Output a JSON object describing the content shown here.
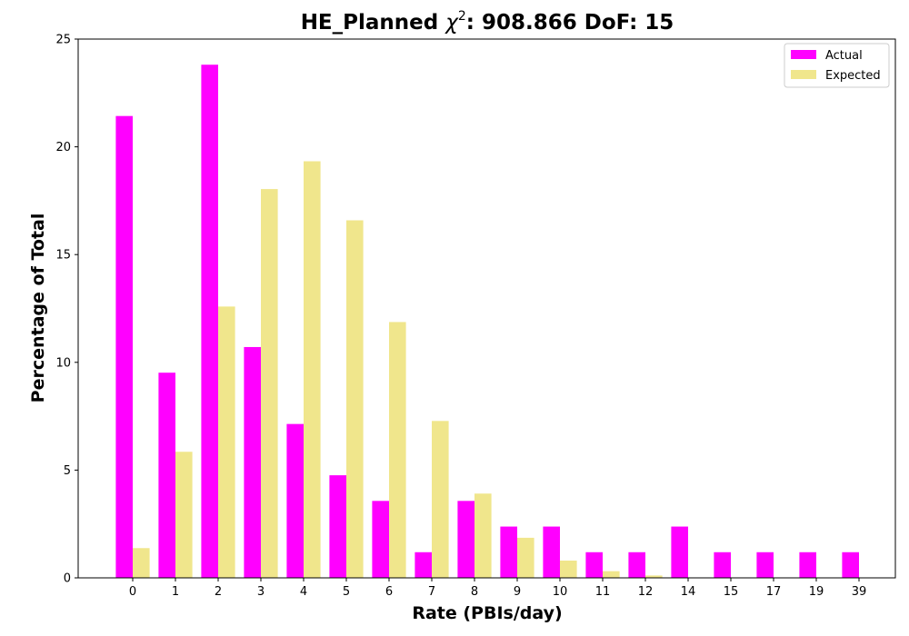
{
  "chart_data": {
    "type": "bar",
    "title_prefix": "HE_Planned ",
    "title_symbol": "χ",
    "title_superscript": "2",
    "title_suffix": ": 908.866 DoF: 15",
    "xlabel": "Rate (PBIs/day)",
    "ylabel": "Percentage of Total",
    "ylim": [
      0,
      25
    ],
    "yticks": [
      0,
      5,
      10,
      15,
      20,
      25
    ],
    "grid": false,
    "legend_position": "top-right",
    "categories": [
      "0",
      "1",
      "2",
      "3",
      "4",
      "5",
      "6",
      "7",
      "8",
      "9",
      "10",
      "11",
      "12",
      "14",
      "15",
      "17",
      "19",
      "39"
    ],
    "series": [
      {
        "name": "Actual",
        "color": "#ff00ff",
        "values": [
          21.43,
          9.52,
          23.81,
          10.71,
          7.14,
          4.76,
          3.57,
          1.19,
          3.57,
          2.38,
          2.38,
          1.19,
          1.19,
          2.38,
          1.19,
          1.19,
          1.19,
          1.19
        ]
      },
      {
        "name": "Expected",
        "color": "#f0e68c",
        "values": [
          1.38,
          5.85,
          12.59,
          18.04,
          19.33,
          16.59,
          11.87,
          7.28,
          3.91,
          1.86,
          0.8,
          0.31,
          0.11,
          0.01,
          0.003,
          0.0,
          0.0,
          0.0
        ]
      }
    ]
  }
}
